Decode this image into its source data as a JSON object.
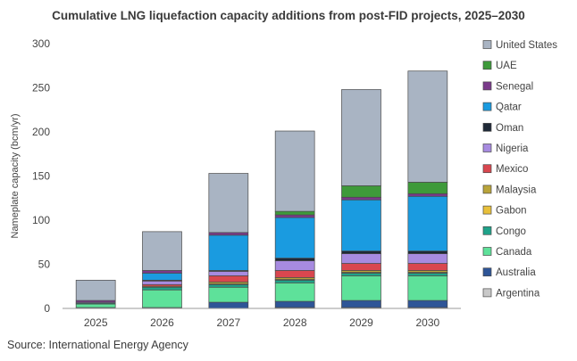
{
  "chart_data": {
    "type": "bar",
    "stacked": true,
    "title": "Cumulative LNG liquefaction capacity additions from post-FID projects, 2025–2030",
    "xlabel": "",
    "ylabel": "Nameplate capacity (bcm/yr)",
    "ylim": [
      0,
      300
    ],
    "yticks": [
      0,
      50,
      100,
      150,
      200,
      250,
      300
    ],
    "grid": false,
    "legend_position": "right",
    "categories": [
      "2025",
      "2026",
      "2027",
      "2028",
      "2029",
      "2030"
    ],
    "series": [
      {
        "name": "Argentina",
        "color": "#c9c9c9",
        "values": [
          0,
          0,
          0,
          1,
          1,
          1
        ]
      },
      {
        "name": "Australia",
        "color": "#2e5597",
        "values": [
          1,
          1,
          7,
          7,
          8,
          8
        ]
      },
      {
        "name": "Canada",
        "color": "#5ee19a",
        "values": [
          4,
          20,
          17,
          21,
          28,
          28
        ]
      },
      {
        "name": "Congo",
        "color": "#1fa38a",
        "values": [
          1,
          3,
          3,
          3,
          3,
          3
        ]
      },
      {
        "name": "Gabon",
        "color": "#e8c03a",
        "values": [
          0,
          0,
          1,
          1,
          1,
          1
        ]
      },
      {
        "name": "Malaysia",
        "color": "#b9a43a",
        "values": [
          0,
          1,
          2,
          2,
          2,
          2
        ]
      },
      {
        "name": "Mexico",
        "color": "#d9474f",
        "values": [
          0,
          2,
          7,
          8,
          8,
          8
        ]
      },
      {
        "name": "Nigeria",
        "color": "#a78be0",
        "values": [
          1,
          4,
          5,
          11,
          11,
          11
        ]
      },
      {
        "name": "Oman",
        "color": "#1f2937",
        "values": [
          0,
          1,
          1,
          3,
          3,
          3
        ]
      },
      {
        "name": "Qatar",
        "color": "#1a9be0",
        "values": [
          0,
          8,
          40,
          46,
          58,
          62
        ]
      },
      {
        "name": "Senegal",
        "color": "#7a3a8a",
        "values": [
          2,
          3,
          3,
          3,
          3,
          3
        ]
      },
      {
        "name": "UAE",
        "color": "#3e9a3a",
        "values": [
          0,
          0,
          0,
          4,
          13,
          13
        ]
      },
      {
        "name": "United States",
        "color": "#a9b4c3",
        "values": [
          23,
          44,
          67,
          91,
          109,
          126
        ]
      }
    ]
  },
  "source_text": "Source: International Energy Agency"
}
